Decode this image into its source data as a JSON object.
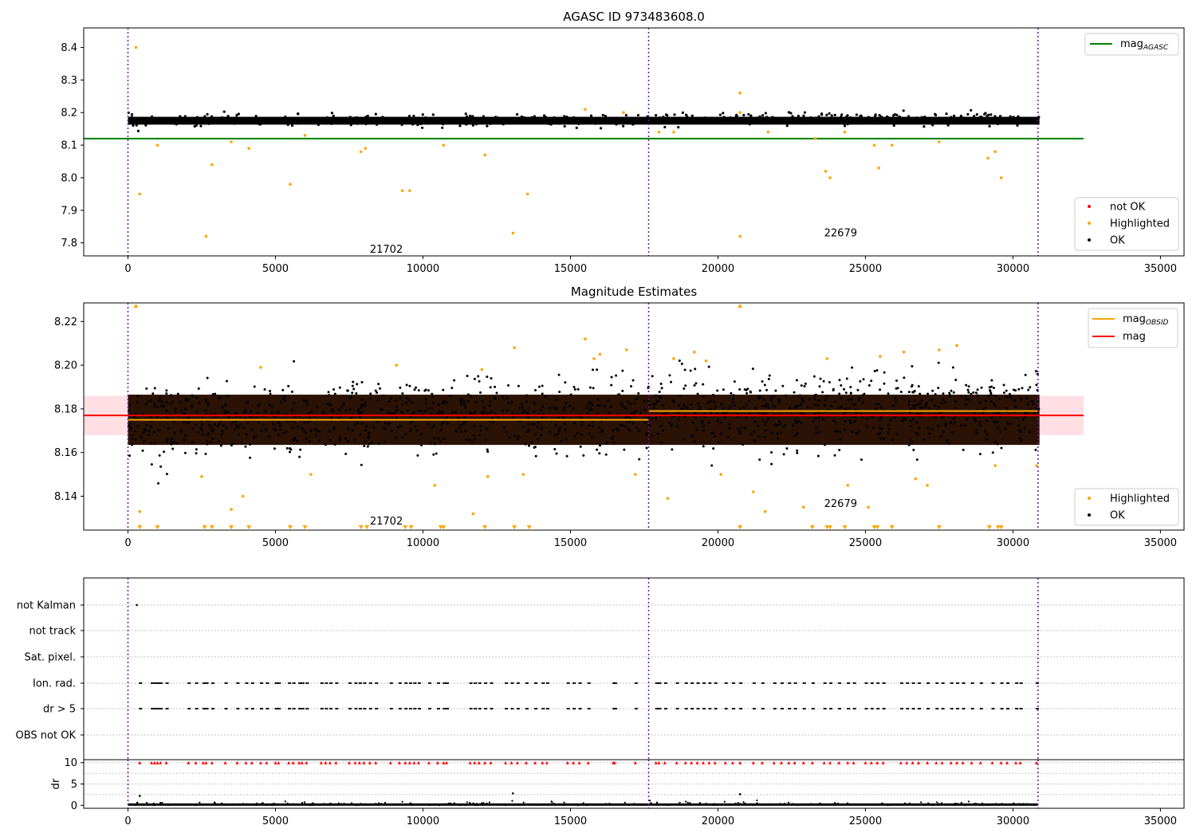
{
  "chart_data": [
    {
      "type": "scatter",
      "title": "AGASC ID 973483608.0",
      "xlim": [
        -1500,
        35800
      ],
      "ylim": [
        7.76,
        8.46
      ],
      "xticks": [
        "0",
        "5000",
        "10000",
        "15000",
        "20000",
        "25000",
        "30000",
        "35000"
      ],
      "yticks": [
        "7.8",
        "7.9",
        "8.0",
        "8.1",
        "8.2",
        "8.3",
        "8.4"
      ],
      "vlines_x": [
        0,
        17650,
        30850
      ],
      "band": {
        "x_start": 0,
        "x_end": 30900,
        "y_center": 8.175,
        "y_halfwidth": 0.012
      },
      "hline": {
        "y": 8.12,
        "x_start": -1500,
        "x_end": 32400,
        "color": "#008000"
      },
      "highlighted": [
        [
          270,
          8.4
        ],
        [
          400,
          7.95
        ],
        [
          2650,
          7.82
        ],
        [
          2850,
          8.04
        ],
        [
          5500,
          7.98
        ],
        [
          9300,
          7.96
        ],
        [
          9550,
          7.96
        ],
        [
          13050,
          7.83
        ],
        [
          13550,
          7.95
        ],
        [
          20750,
          8.26
        ],
        [
          20750,
          7.82
        ],
        [
          23650,
          8.02
        ],
        [
          23800,
          8.0
        ],
        [
          25450,
          8.03
        ],
        [
          29150,
          8.06
        ],
        [
          29400,
          8.08
        ],
        [
          29600,
          8.0
        ],
        [
          1000,
          8.1
        ],
        [
          3500,
          8.11
        ],
        [
          4100,
          8.09
        ],
        [
          6000,
          8.13
        ],
        [
          7900,
          8.08
        ],
        [
          8050,
          8.09
        ],
        [
          10700,
          8.1
        ],
        [
          12100,
          8.07
        ],
        [
          18000,
          8.14
        ],
        [
          18500,
          8.14
        ],
        [
          21700,
          8.14
        ],
        [
          23300,
          8.12
        ],
        [
          24300,
          8.14
        ],
        [
          25300,
          8.1
        ],
        [
          25900,
          8.1
        ],
        [
          27500,
          8.11
        ],
        [
          15500,
          8.21
        ],
        [
          16800,
          8.2
        ],
        [
          20750,
          8.2
        ]
      ],
      "legend_line": [
        {
          "label": "mag",
          "sub": "AGASC",
          "color": "#008000"
        }
      ],
      "legend_markers": [
        {
          "label": "not OK",
          "color": "#ff0000"
        },
        {
          "label": "Highlighted",
          "color": "#ffa500"
        },
        {
          "label": "OK",
          "color": "#000000"
        }
      ],
      "annotations": [
        {
          "text": "21702",
          "x": 8200,
          "y": 7.78
        },
        {
          "text": "22679",
          "x": 23600,
          "y": 7.83
        }
      ]
    },
    {
      "type": "scatter",
      "title": "Magnitude Estimates",
      "xlim": [
        -1500,
        35800
      ],
      "ylim": [
        8.1245,
        8.2285
      ],
      "xticks": [
        "0",
        "5000",
        "10000",
        "15000",
        "20000",
        "25000",
        "30000",
        "35000"
      ],
      "yticks": [
        "8.14",
        "8.16",
        "8.18",
        "8.20",
        "8.22"
      ],
      "vlines_x": [
        0,
        17650,
        30850
      ],
      "band": {
        "x_start": 0,
        "x_end": 30900,
        "y_center": 8.175,
        "y_halfwidth": 0.0115
      },
      "mag_band": {
        "y_low": 8.168,
        "y_high": 8.186,
        "x_start": -1500,
        "x_end": 32400
      },
      "mag_line": {
        "y": 8.177,
        "x_start": -1500,
        "x_end": 32400
      },
      "obsid_segments": [
        {
          "x_start": 0,
          "x_end": 17650,
          "y": 8.175
        },
        {
          "x_start": 17650,
          "x_end": 30850,
          "y": 8.179
        }
      ],
      "highlighted": [
        [
          400,
          8.133
        ],
        [
          2500,
          8.149
        ],
        [
          3500,
          8.134
        ],
        [
          3900,
          8.14
        ],
        [
          4500,
          8.199
        ],
        [
          6200,
          8.15
        ],
        [
          9100,
          8.2
        ],
        [
          10400,
          8.145
        ],
        [
          11700,
          8.132
        ],
        [
          12200,
          8.149
        ],
        [
          13100,
          8.208
        ],
        [
          13400,
          8.15
        ],
        [
          15500,
          8.212
        ],
        [
          16000,
          8.205
        ],
        [
          16900,
          8.207
        ],
        [
          17200,
          8.15
        ],
        [
          18300,
          8.139
        ],
        [
          18500,
          8.203
        ],
        [
          19200,
          8.206
        ],
        [
          20100,
          8.15
        ],
        [
          21200,
          8.142
        ],
        [
          21600,
          8.133
        ],
        [
          22900,
          8.135
        ],
        [
          23700,
          8.203
        ],
        [
          24400,
          8.145
        ],
        [
          25100,
          8.135
        ],
        [
          25500,
          8.204
        ],
        [
          26700,
          8.148
        ],
        [
          27100,
          8.145
        ],
        [
          27500,
          8.207
        ],
        [
          28100,
          8.209
        ],
        [
          29400,
          8.154
        ],
        [
          30800,
          8.154
        ],
        [
          12000,
          8.198
        ],
        [
          15800,
          8.203
        ],
        [
          19600,
          8.202
        ],
        [
          26300,
          8.206
        ]
      ],
      "highlighted_low_x": [
        400,
        1000,
        2600,
        2850,
        3500,
        4100,
        5500,
        6000,
        7900,
        8100,
        9400,
        9600,
        10600,
        10700,
        12100,
        13100,
        13600,
        20750,
        23200,
        23700,
        23800,
        24300,
        25300,
        25400,
        25900,
        27500,
        29200,
        29500,
        29600
      ],
      "highlighted_high_x": [
        270,
        20750
      ],
      "legend_line": [
        {
          "label": "mag",
          "sub": "OBSID",
          "color": "#ffa500"
        },
        {
          "label": "mag",
          "sub": "",
          "color": "#ff0000"
        }
      ],
      "legend_markers": [
        {
          "label": "Highlighted",
          "color": "#ffa500"
        },
        {
          "label": "OK",
          "color": "#000000"
        }
      ],
      "annotations": [
        {
          "text": "21702",
          "x": 8200,
          "y": 8.1285
        },
        {
          "text": "22679",
          "x": 23600,
          "y": 8.1365
        }
      ]
    },
    {
      "type": "scatter",
      "xlim": [
        -1500,
        35800
      ],
      "categories": [
        "not Kalman",
        "not track",
        "Sat. pixel.",
        "Ion. rad.",
        "dr > 5",
        "OBS not OK"
      ],
      "xticks": [
        "0",
        "5000",
        "10000",
        "15000",
        "20000",
        "25000",
        "30000",
        "35000"
      ],
      "vlines_x": [
        0,
        17650,
        30850
      ],
      "not_kalman_x": [
        300
      ],
      "flag_x": [
        400,
        800,
        900,
        1000,
        1100,
        1300,
        2050,
        2300,
        2550,
        2650,
        2850,
        3300,
        3700,
        4000,
        4200,
        4500,
        4700,
        5000,
        5100,
        5450,
        5600,
        5800,
        5900,
        6050,
        6550,
        6700,
        6850,
        7050,
        7500,
        7700,
        7850,
        8000,
        8200,
        8400,
        8900,
        9200,
        9400,
        9550,
        9700,
        9850,
        10200,
        10500,
        10700,
        10800,
        11600,
        11750,
        11900,
        12100,
        12300,
        12800,
        13000,
        13200,
        13500,
        13800,
        14050,
        14200,
        14900,
        15100,
        15300,
        15600,
        16450,
        16500,
        17200,
        17900,
        18000,
        18200,
        18600,
        18900,
        19100,
        19300,
        19500,
        19700,
        19900,
        20250,
        20500,
        20750,
        21200,
        21500,
        21900,
        22150,
        22400,
        22600,
        22900,
        23200,
        23600,
        23800,
        24100,
        24400,
        24600,
        25000,
        25200,
        25400,
        25600,
        26200,
        26400,
        26600,
        26800,
        27100,
        27400,
        27600,
        27900,
        28100,
        28300,
        28600,
        28900,
        29300,
        29600,
        29800,
        30100,
        30250,
        30800
      ],
      "dr_ylim": [
        -0.7,
        10.7
      ],
      "dr_yticks": [
        "0",
        "5",
        "10"
      ],
      "dr_ylabel": "dr",
      "dr_high_y": 10,
      "dr_outliers": [
        [
          400,
          2.2
        ],
        [
          13050,
          2.8
        ],
        [
          20750,
          2.6
        ]
      ]
    }
  ]
}
